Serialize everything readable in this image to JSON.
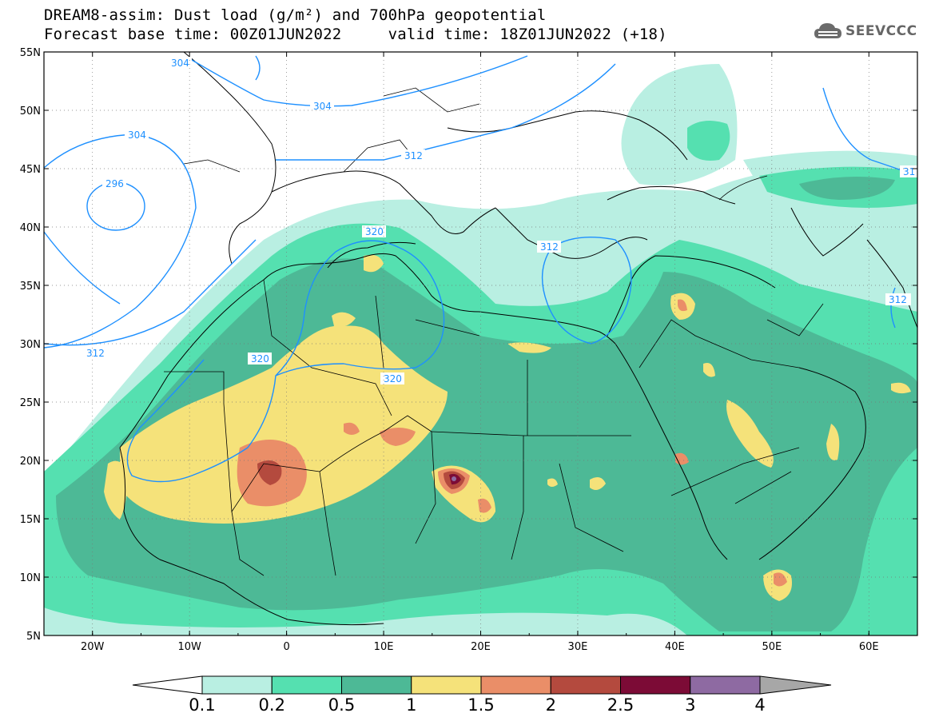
{
  "title": {
    "line1": "DREAM8-assim: Dust load (g/m²) and 700hPa geopotential",
    "line2": "Forecast base time: 00Z01JUN2022     valid time: 18Z01JUN2022 (+18)"
  },
  "logo": {
    "text": "SEEVCCC",
    "icon": "cloud-icon"
  },
  "axes": {
    "lat_labels": [
      "55N",
      "50N",
      "45N",
      "40N",
      "35N",
      "30N",
      "25N",
      "20N",
      "15N",
      "10N",
      "5N"
    ],
    "lon_labels": [
      "20W",
      "10W",
      "0",
      "10E",
      "20E",
      "30E",
      "40E",
      "50E",
      "60E"
    ],
    "lat_range": [
      5,
      55
    ],
    "lon_range": [
      -25,
      65
    ]
  },
  "contours": {
    "color": "#1e90ff",
    "labels": [
      "304",
      "304",
      "304",
      "296",
      "312",
      "320",
      "320",
      "312",
      "312",
      "312",
      "31"
    ]
  },
  "colorbar": {
    "labels": [
      "0.1",
      "0.2",
      "0.5",
      "1",
      "1.5",
      "2",
      "2.5",
      "3",
      "4"
    ],
    "colors": [
      "#ffffff",
      "#b9efe2",
      "#55e0b0",
      "#4db996",
      "#f5e27a",
      "#ea8e68",
      "#b44a3e",
      "#7c0b36",
      "#8e6aa2",
      "#a7a7a7"
    ]
  }
}
